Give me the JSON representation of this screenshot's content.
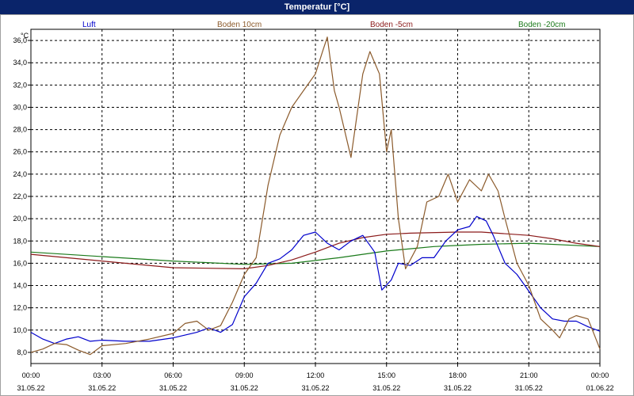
{
  "window": {
    "title": "Temperatur [°C]"
  },
  "chart_data": {
    "type": "line",
    "title": "Temperatur [°C]",
    "ylabel": "°C",
    "ylim": [
      7,
      37
    ],
    "xlim": [
      0,
      24
    ],
    "grid": true,
    "legend_placement": "top",
    "yticks": [
      "8,0",
      "10,0",
      "12,0",
      "14,0",
      "16,0",
      "18,0",
      "20,0",
      "22,0",
      "24,0",
      "26,0",
      "28,0",
      "30,0",
      "32,0",
      "34,0",
      "36,0"
    ],
    "xticks": [
      {
        "time": "00:00",
        "date": "31.05.22"
      },
      {
        "time": "03:00",
        "date": "31.05.22"
      },
      {
        "time": "06:00",
        "date": "31.05.22"
      },
      {
        "time": "09:00",
        "date": "31.05.22"
      },
      {
        "time": "12:00",
        "date": "31.05.22"
      },
      {
        "time": "15:00",
        "date": "31.05.22"
      },
      {
        "time": "18:00",
        "date": "31.05.22"
      },
      {
        "time": "21:00",
        "date": "31.05.22"
      },
      {
        "time": "00:00",
        "date": "01.06.22"
      }
    ],
    "series": [
      {
        "name": "Luft",
        "color": "#0000cc",
        "points": [
          [
            0,
            9.8
          ],
          [
            0.5,
            9.2
          ],
          [
            1,
            8.8
          ],
          [
            1.5,
            9.2
          ],
          [
            2,
            9.4
          ],
          [
            2.5,
            9.0
          ],
          [
            3,
            9.1
          ],
          [
            4,
            9.0
          ],
          [
            5,
            9.0
          ],
          [
            6,
            9.3
          ],
          [
            7,
            9.8
          ],
          [
            7.5,
            10.2
          ],
          [
            8,
            9.8
          ],
          [
            8.5,
            10.5
          ],
          [
            9,
            13.0
          ],
          [
            9.5,
            14.2
          ],
          [
            10,
            16.0
          ],
          [
            10.5,
            16.4
          ],
          [
            11,
            17.2
          ],
          [
            11.5,
            18.5
          ],
          [
            12,
            18.8
          ],
          [
            12.5,
            17.8
          ],
          [
            13,
            17.2
          ],
          [
            13.5,
            18.0
          ],
          [
            14,
            18.5
          ],
          [
            14.5,
            17.0
          ],
          [
            14.8,
            13.6
          ],
          [
            15.2,
            14.5
          ],
          [
            15.5,
            16.0
          ],
          [
            16,
            15.8
          ],
          [
            16.5,
            16.5
          ],
          [
            17,
            16.5
          ],
          [
            17.5,
            18.0
          ],
          [
            18,
            19.0
          ],
          [
            18.5,
            19.3
          ],
          [
            18.8,
            20.2
          ],
          [
            19.2,
            19.8
          ],
          [
            19.5,
            18.5
          ],
          [
            20,
            16.0
          ],
          [
            20.5,
            15.0
          ],
          [
            21,
            13.5
          ],
          [
            21.5,
            12.0
          ],
          [
            22,
            11.0
          ],
          [
            22.5,
            10.8
          ],
          [
            23,
            10.8
          ],
          [
            23.5,
            10.3
          ],
          [
            24,
            9.9
          ]
        ]
      },
      {
        "name": "Boden 10cm",
        "color": "#8b5a2b",
        "points": [
          [
            0,
            8.0
          ],
          [
            0.5,
            8.3
          ],
          [
            1,
            8.8
          ],
          [
            1.5,
            8.7
          ],
          [
            2,
            8.2
          ],
          [
            2.5,
            7.8
          ],
          [
            3,
            8.6
          ],
          [
            4,
            8.8
          ],
          [
            5,
            9.2
          ],
          [
            6,
            9.7
          ],
          [
            6.5,
            10.6
          ],
          [
            7,
            10.8
          ],
          [
            7.5,
            10.0
          ],
          [
            8,
            10.4
          ],
          [
            8.5,
            12.5
          ],
          [
            9,
            15.0
          ],
          [
            9.5,
            16.5
          ],
          [
            10,
            23.0
          ],
          [
            10.5,
            27.5
          ],
          [
            11,
            30.0
          ],
          [
            11.5,
            31.5
          ],
          [
            12,
            33.0
          ],
          [
            12.3,
            35.0
          ],
          [
            12.5,
            36.3
          ],
          [
            12.8,
            31.5
          ],
          [
            13,
            30.0
          ],
          [
            13.5,
            25.5
          ],
          [
            14,
            33.0
          ],
          [
            14.3,
            35.0
          ],
          [
            14.7,
            33.0
          ],
          [
            15,
            26.0
          ],
          [
            15.2,
            28.0
          ],
          [
            15.5,
            20.0
          ],
          [
            15.8,
            15.5
          ],
          [
            16.3,
            17.5
          ],
          [
            16.7,
            21.5
          ],
          [
            17.2,
            22.0
          ],
          [
            17.6,
            24.0
          ],
          [
            18,
            21.5
          ],
          [
            18.5,
            23.5
          ],
          [
            19,
            22.5
          ],
          [
            19.3,
            24.0
          ],
          [
            19.7,
            22.5
          ],
          [
            20,
            20.0
          ],
          [
            20.5,
            16.0
          ],
          [
            21,
            14.0
          ],
          [
            21.5,
            11.0
          ],
          [
            22,
            10.0
          ],
          [
            22.3,
            9.3
          ],
          [
            22.7,
            11.0
          ],
          [
            23,
            11.3
          ],
          [
            23.5,
            11.0
          ],
          [
            24,
            8.3
          ]
        ]
      },
      {
        "name": "Boden -5cm",
        "color": "#8b1a1a",
        "points": [
          [
            0,
            16.8
          ],
          [
            3,
            16.2
          ],
          [
            6,
            15.6
          ],
          [
            9,
            15.5
          ],
          [
            10,
            15.8
          ],
          [
            11,
            16.3
          ],
          [
            12,
            17.0
          ],
          [
            13,
            17.8
          ],
          [
            14,
            18.3
          ],
          [
            15,
            18.6
          ],
          [
            16,
            18.7
          ],
          [
            18,
            18.8
          ],
          [
            19,
            18.8
          ],
          [
            21,
            18.5
          ],
          [
            22,
            18.2
          ],
          [
            23,
            17.8
          ],
          [
            24,
            17.5
          ]
        ]
      },
      {
        "name": "Boden -20cm",
        "color": "#1a7a1a",
        "points": [
          [
            0,
            17.0
          ],
          [
            3,
            16.6
          ],
          [
            6,
            16.2
          ],
          [
            9,
            15.9
          ],
          [
            11,
            16.0
          ],
          [
            13,
            16.5
          ],
          [
            14,
            16.8
          ],
          [
            15,
            17.1
          ],
          [
            16,
            17.3
          ],
          [
            17,
            17.5
          ],
          [
            18,
            17.6
          ],
          [
            19,
            17.7
          ],
          [
            21,
            17.8
          ],
          [
            24,
            17.5
          ]
        ]
      }
    ]
  }
}
